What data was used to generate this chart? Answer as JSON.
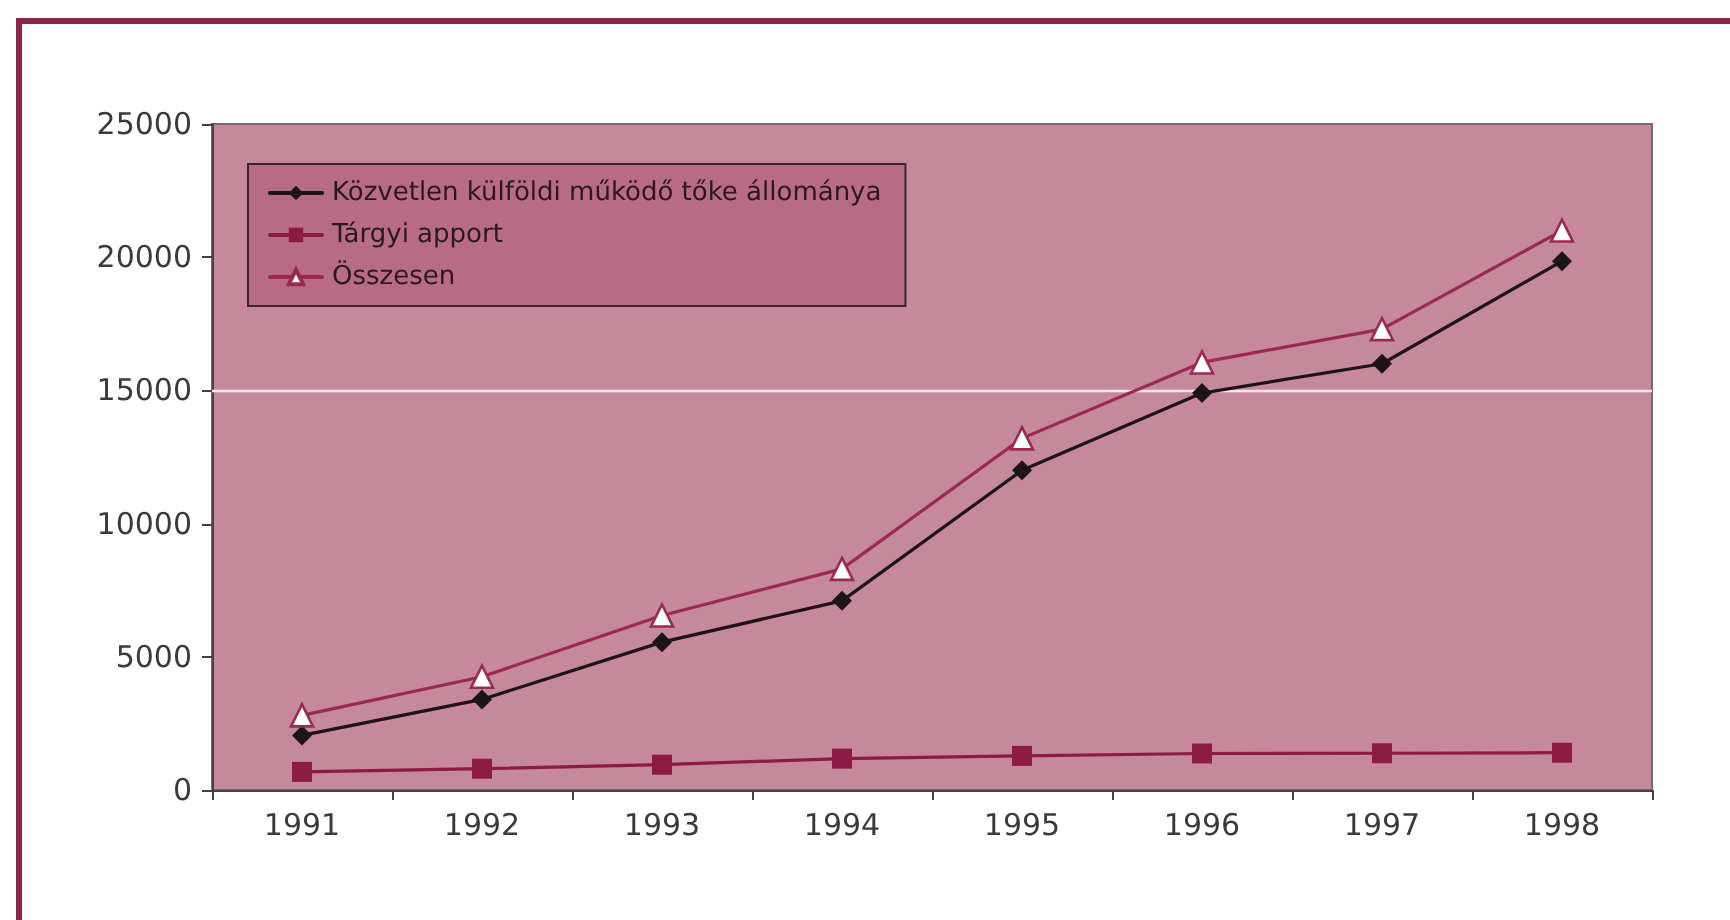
{
  "chart_data": {
    "type": "line",
    "categories": [
      "1991",
      "1992",
      "1993",
      "1994",
      "1995",
      "1996",
      "1997",
      "1998"
    ],
    "series": [
      {
        "name": "Közvetlen külföldi működő tőke állománya",
        "color": "#1c1418",
        "marker": "diamond",
        "values": [
          2050,
          3400,
          5550,
          7100,
          12000,
          14900,
          16000,
          19850
        ]
      },
      {
        "name": "Tárgyi apport",
        "color": "#8c1c44",
        "marker": "square",
        "values": [
          680,
          800,
          950,
          1180,
          1280,
          1370,
          1380,
          1400
        ]
      },
      {
        "name": "Összesen",
        "color": "#9a2a50",
        "marker": "triangle",
        "values": [
          2800,
          4250,
          6550,
          8300,
          13200,
          16050,
          17300,
          21000
        ]
      }
    ],
    "ylim": [
      0,
      25000
    ],
    "yticks": [
      0,
      5000,
      10000,
      15000,
      20000,
      25000
    ],
    "legend": "top left",
    "ref_lines": [
      {
        "axis": "y",
        "value": 15000,
        "color": "#f6e8ec"
      }
    ]
  }
}
